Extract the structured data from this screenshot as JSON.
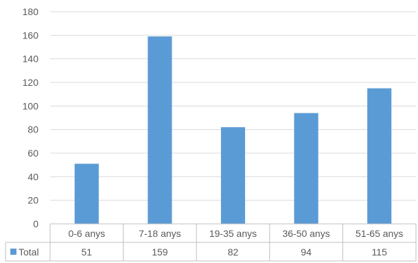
{
  "chart_data": {
    "type": "bar",
    "categories": [
      "0-6 anys",
      "7-18 anys",
      "19-35 anys",
      "36-50 anys",
      "51-65 anys"
    ],
    "series": [
      {
        "name": "Total",
        "values": [
          51,
          159,
          82,
          94,
          115
        ],
        "color": "#5b9bd5"
      }
    ],
    "ylim": [
      0,
      180
    ],
    "yticks": [
      "0",
      "20",
      "40",
      "60",
      "80",
      "100",
      "120",
      "140",
      "160",
      "180"
    ],
    "grid": true,
    "data_table": true,
    "title": "",
    "xlabel": "",
    "ylabel": ""
  }
}
